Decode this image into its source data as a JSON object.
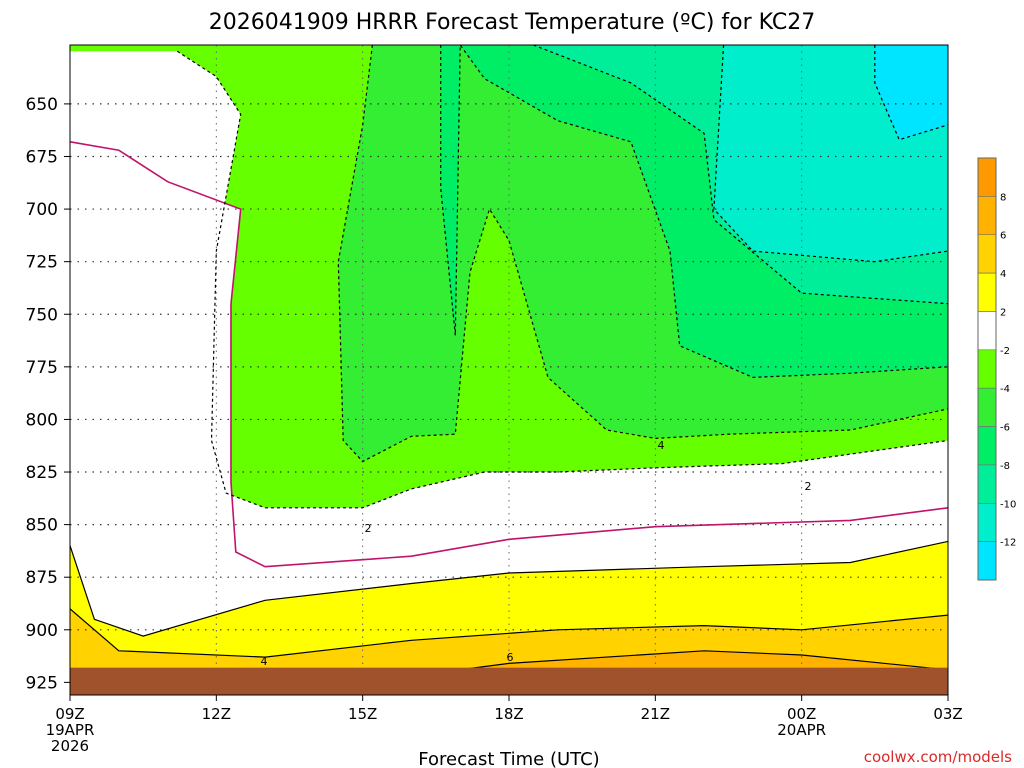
{
  "chart_data": {
    "type": "heatmap",
    "title": "2026041909 HRRR Forecast Temperature (ºC) for KC27",
    "xlabel": "Forecast Time (UTC)",
    "ylabel": "",
    "credit": "coolwx.com/models",
    "x_ticks": [
      {
        "hour": 0,
        "lines": [
          "09Z",
          "19APR",
          "2026"
        ]
      },
      {
        "hour": 3,
        "lines": [
          "12Z"
        ]
      },
      {
        "hour": 6,
        "lines": [
          "15Z"
        ]
      },
      {
        "hour": 9,
        "lines": [
          "18Z"
        ]
      },
      {
        "hour": 12,
        "lines": [
          "21Z"
        ]
      },
      {
        "hour": 15,
        "lines": [
          "00Z",
          "20APR"
        ]
      },
      {
        "hour": 18,
        "lines": [
          "03Z"
        ]
      }
    ],
    "xlim": [
      0,
      18
    ],
    "y_ticks": [
      650,
      675,
      700,
      725,
      750,
      775,
      800,
      825,
      850,
      875,
      900,
      925
    ],
    "ylim_hpa": [
      622,
      931
    ],
    "y_axis_inverted": true,
    "surface_pressure_hpa": 918,
    "grid": true,
    "colorbar": {
      "placement": "right",
      "bands": [
        {
          "from": 8,
          "to": 10,
          "color": "#ff9900"
        },
        {
          "from": 6,
          "to": 8,
          "color": "#ffb300"
        },
        {
          "from": 4,
          "to": 6,
          "color": "#ffd200"
        },
        {
          "from": 2,
          "to": 4,
          "color": "#ffff00"
        },
        {
          "from": -2,
          "to": 2,
          "color": "#ffffff"
        },
        {
          "from": -4,
          "to": -2,
          "color": "#66ff00"
        },
        {
          "from": -6,
          "to": -4,
          "color": "#33ee33"
        },
        {
          "from": -8,
          "to": -6,
          "color": "#00ee66"
        },
        {
          "from": -10,
          "to": -8,
          "color": "#00ee99"
        },
        {
          "from": -12,
          "to": -10,
          "color": "#00eecc"
        },
        {
          "from": -14,
          "to": -12,
          "color": "#00e5ff"
        }
      ],
      "labels": [
        "8",
        "6",
        "4",
        "2",
        "-2",
        "-4",
        "-6",
        "-8",
        "-10",
        "-12"
      ]
    },
    "contour_labels": [
      "4",
      "6",
      "2",
      "4",
      "2"
    ],
    "contours": [
      {
        "level": 6,
        "points": [
          [
            0,
            928
          ],
          [
            6,
            925
          ],
          [
            9,
            916
          ],
          [
            13,
            910
          ],
          [
            15,
            912
          ],
          [
            18,
            919
          ]
        ]
      },
      {
        "level": 4,
        "points": [
          [
            0,
            890
          ],
          [
            1,
            910
          ],
          [
            4,
            913
          ],
          [
            7,
            905
          ],
          [
            10,
            900
          ],
          [
            13,
            898
          ],
          [
            15,
            900
          ],
          [
            18,
            893
          ]
        ]
      },
      {
        "level": 2,
        "points": [
          [
            0,
            860
          ],
          [
            0.5,
            895
          ],
          [
            1.5,
            903
          ],
          [
            4,
            886
          ],
          [
            7,
            878
          ],
          [
            9,
            873
          ],
          [
            13,
            870
          ],
          [
            16,
            868
          ],
          [
            18,
            858
          ]
        ]
      },
      {
        "level": 0,
        "points": [
          [
            0,
            668
          ],
          [
            1,
            672
          ],
          [
            2,
            687
          ],
          [
            3.5,
            700
          ],
          [
            3.3,
            745
          ],
          [
            3.3,
            830
          ],
          [
            3.4,
            863
          ],
          [
            4,
            870
          ],
          [
            7,
            865
          ],
          [
            9,
            857
          ],
          [
            12,
            851
          ],
          [
            16,
            848
          ],
          [
            18,
            842
          ]
        ]
      },
      {
        "level": -2,
        "points": [
          [
            2.2,
            625
          ],
          [
            3,
            637
          ],
          [
            3.5,
            655
          ],
          [
            3,
            720
          ],
          [
            2.9,
            810
          ],
          [
            3.2,
            835
          ],
          [
            4,
            842
          ],
          [
            6,
            842
          ],
          [
            7,
            833
          ],
          [
            8.5,
            825
          ],
          [
            10,
            825
          ],
          [
            12,
            823
          ],
          [
            14.6,
            821
          ],
          [
            18,
            810
          ]
        ]
      },
      {
        "level": -4,
        "points": [
          [
            6.2,
            622
          ],
          [
            6,
            660
          ],
          [
            5.5,
            725
          ],
          [
            5.6,
            810
          ],
          [
            6,
            820
          ],
          [
            7,
            808
          ],
          [
            7.9,
            807
          ],
          [
            8.2,
            730
          ],
          [
            8.6,
            700
          ],
          [
            9,
            715
          ],
          [
            9.8,
            780
          ],
          [
            11,
            805
          ],
          [
            12,
            809
          ],
          [
            13.5,
            807
          ],
          [
            16,
            805
          ],
          [
            18,
            795
          ]
        ]
      },
      {
        "level": -6,
        "points": [
          [
            7.6,
            622
          ],
          [
            7.6,
            690
          ],
          [
            7.9,
            760
          ],
          [
            8,
            622
          ],
          [
            8.5,
            638
          ],
          [
            10,
            658
          ],
          [
            11.5,
            668
          ],
          [
            12.3,
            720
          ],
          [
            12.5,
            765
          ],
          [
            14,
            780
          ],
          [
            16,
            778
          ],
          [
            18,
            775
          ]
        ]
      },
      {
        "level": -8,
        "points": [
          [
            9.5,
            622
          ],
          [
            11.5,
            640
          ],
          [
            13,
            664
          ],
          [
            13.2,
            705
          ],
          [
            15,
            740
          ],
          [
            18,
            745
          ]
        ]
      },
      {
        "level": -10,
        "points": [
          [
            13.4,
            622
          ],
          [
            13.2,
            700
          ],
          [
            14,
            720
          ],
          [
            16.5,
            725
          ],
          [
            18,
            720
          ]
        ]
      },
      {
        "level": -12,
        "points": [
          [
            16.5,
            622
          ],
          [
            16.5,
            640
          ],
          [
            17,
            667
          ],
          [
            18,
            660
          ]
        ]
      }
    ]
  }
}
